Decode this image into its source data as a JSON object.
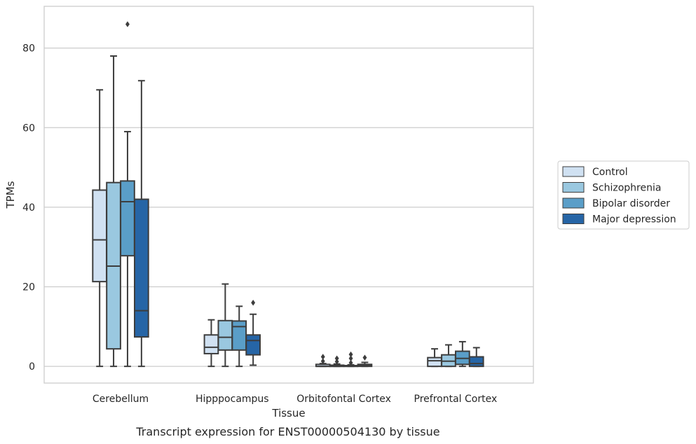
{
  "chart_data": {
    "type": "box",
    "title": "Transcript expression for ENST00000504130 by tissue",
    "xlabel": "Tissue",
    "ylabel": "TPMs",
    "ylim": [
      -4.2,
      90.5
    ],
    "yticks": [
      0,
      20,
      40,
      60,
      80
    ],
    "grid": "horizontal",
    "legend_placement": "right",
    "categories": [
      "Cerebellum",
      "Hipppocampus",
      "Orbitofontal Cortex",
      "Prefrontal Cortex"
    ],
    "series": [
      {
        "name": "Control",
        "color": "#d0e1f2",
        "boxes": [
          {
            "whislo": 0,
            "q1": 21.3,
            "med": 31.8,
            "q3": 44.3,
            "whishi": 69.5,
            "fliers": []
          },
          {
            "whislo": 0,
            "q1": 3.2,
            "med": 4.8,
            "q3": 7.9,
            "whishi": 11.7,
            "fliers": []
          },
          {
            "whislo": 0,
            "q1": 0,
            "med": 0,
            "q3": 0.5,
            "whishi": 0.7,
            "fliers": [
              1.3,
              2.4
            ]
          },
          {
            "whislo": 0,
            "q1": 0,
            "med": 1.4,
            "q3": 2.2,
            "whishi": 4.4,
            "fliers": []
          }
        ]
      },
      {
        "name": "Schizophrenia",
        "color": "#9ac8e0",
        "boxes": [
          {
            "whislo": 0,
            "q1": 4.4,
            "med": 25.2,
            "q3": 46.2,
            "whishi": 78,
            "fliers": []
          },
          {
            "whislo": 0,
            "q1": 4.1,
            "med": 7.3,
            "q3": 11.5,
            "whishi": 20.7,
            "fliers": []
          },
          {
            "whislo": 0,
            "q1": 0,
            "med": 0,
            "q3": 0.3,
            "whishi": 0.6,
            "fliers": [
              1.2,
              2.0
            ]
          },
          {
            "whislo": 0,
            "q1": 0,
            "med": 1.3,
            "q3": 2.9,
            "whishi": 5.4,
            "fliers": []
          }
        ]
      },
      {
        "name": "Bipolar disorder",
        "color": "#5a9ec8",
        "boxes": [
          {
            "whislo": 0,
            "q1": 27.8,
            "med": 41.4,
            "q3": 46.6,
            "whishi": 59,
            "fliers": [
              86
            ]
          },
          {
            "whislo": 0,
            "q1": 4.1,
            "med": 10,
            "q3": 11.4,
            "whishi": 15.1,
            "fliers": []
          },
          {
            "whislo": 0,
            "q1": 0,
            "med": 0,
            "q3": 0.2,
            "whishi": 0.4,
            "fliers": [
              0.9,
              2.0,
              3.0
            ]
          },
          {
            "whislo": 0,
            "q1": 0.5,
            "med": 2.0,
            "q3": 3.8,
            "whishi": 6.2,
            "fliers": []
          }
        ]
      },
      {
        "name": "Major depression",
        "color": "#2665a6",
        "boxes": [
          {
            "whislo": 0,
            "q1": 7.4,
            "med": 14,
            "q3": 42,
            "whishi": 71.8,
            "fliers": []
          },
          {
            "whislo": 0.3,
            "q1": 2.9,
            "med": 6.5,
            "q3": 7.9,
            "whishi": 13.1,
            "fliers": [
              16
            ]
          },
          {
            "whislo": 0,
            "q1": 0,
            "med": 0.2,
            "q3": 0.5,
            "whishi": 1.0,
            "fliers": [
              2.2
            ]
          },
          {
            "whislo": 0,
            "q1": 0,
            "med": 0.7,
            "q3": 2.4,
            "whishi": 4.7,
            "fliers": []
          }
        ]
      }
    ]
  }
}
